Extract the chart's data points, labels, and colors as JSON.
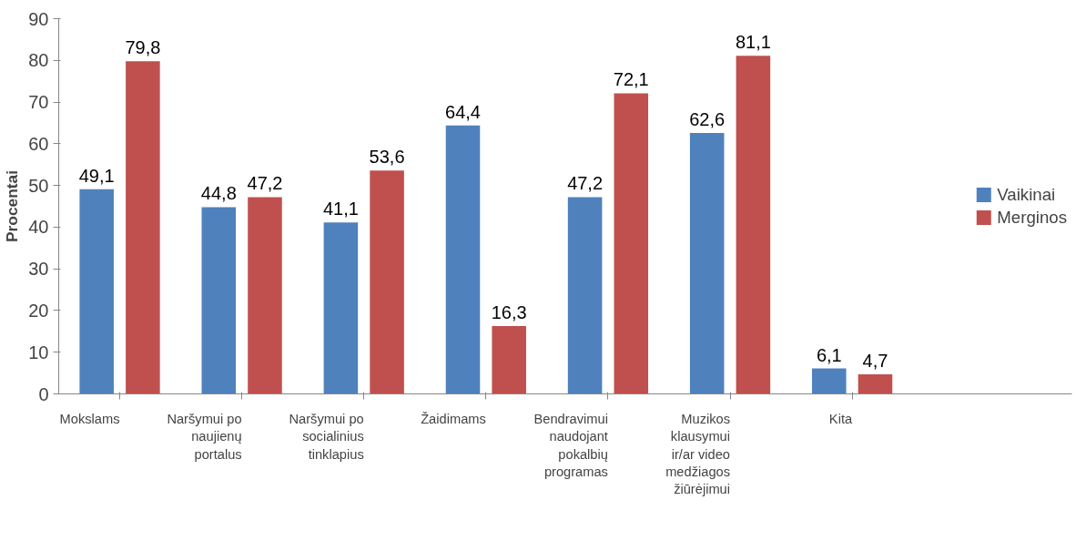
{
  "chart_data": {
    "type": "bar",
    "ylabel": "Procentai",
    "categories": [
      "Mokslams",
      "Naršymui po naujienų portalus",
      "Naršymui po socialinius tinklapius",
      "Žaidimams",
      "Bendravimui naudojant pokalbių programas",
      "Muzikos klausymui ir/ar video medžiagos žiūrėjimui",
      "Kita"
    ],
    "series": [
      {
        "name": "Vaikinai",
        "color": "#4f81bd",
        "values": [
          49.1,
          44.8,
          41.1,
          64.4,
          47.2,
          62.6,
          6.1
        ],
        "value_labels": [
          "49,1",
          "44,8",
          "41,1",
          "64,4",
          "47,2",
          "62,6",
          "6,1"
        ]
      },
      {
        "name": "Merginos",
        "color": "#c0504d",
        "values": [
          79.8,
          47.2,
          53.6,
          16.3,
          72.1,
          81.1,
          4.7
        ],
        "value_labels": [
          "79,8",
          "47,2",
          "53,6",
          "16,3",
          "72,1",
          "81,1",
          "4,7"
        ]
      }
    ],
    "ylim": [
      0,
      90
    ],
    "yticks": [
      0,
      10,
      20,
      30,
      40,
      50,
      60,
      70,
      80,
      90
    ],
    "grid": false,
    "legend": "right"
  }
}
